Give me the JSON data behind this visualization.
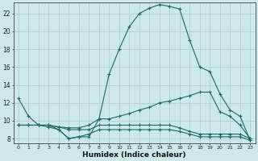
{
  "xlabel": "Humidex (Indice chaleur)",
  "background_color": "#cde8e8",
  "grid_color": "#b0d0d0",
  "line_color": "#1a6b60",
  "xlim": [
    -0.5,
    23.5
  ],
  "ylim": [
    7.5,
    23.2
  ],
  "yticks": [
    8,
    10,
    12,
    14,
    16,
    18,
    20,
    22
  ],
  "xticks": [
    0,
    1,
    2,
    3,
    4,
    5,
    6,
    7,
    8,
    9,
    10,
    11,
    12,
    13,
    14,
    15,
    16,
    17,
    18,
    19,
    20,
    21,
    22,
    23
  ],
  "lines": [
    {
      "x": [
        0,
        1,
        2,
        3,
        4,
        5,
        6,
        7,
        8,
        9,
        10,
        11,
        12,
        13,
        14,
        15,
        16,
        17,
        18,
        19,
        20,
        21,
        22,
        23
      ],
      "y": [
        12.5,
        10.5,
        9.5,
        9.5,
        9.0,
        8.0,
        8.2,
        8.2,
        10.2,
        15.2,
        18.0,
        20.5,
        22.0,
        22.6,
        23.0,
        22.8,
        22.5,
        19.0,
        16.0,
        15.5,
        13.0,
        11.2,
        10.5,
        7.8
      ]
    },
    {
      "x": [
        0,
        1,
        2,
        3,
        4,
        5,
        6,
        7,
        8,
        9,
        10,
        11,
        12,
        13,
        14,
        15,
        16,
        17,
        18,
        19,
        20,
        21,
        22,
        23
      ],
      "y": [
        9.5,
        9.5,
        9.5,
        9.5,
        9.3,
        9.2,
        9.2,
        9.5,
        10.2,
        10.2,
        10.5,
        10.8,
        11.2,
        11.5,
        12.0,
        12.2,
        12.5,
        12.8,
        13.2,
        13.2,
        11.0,
        10.5,
        9.5,
        8.0
      ]
    },
    {
      "x": [
        0,
        1,
        2,
        3,
        4,
        5,
        6,
        7,
        8,
        9,
        10,
        11,
        12,
        13,
        14,
        15,
        16,
        17,
        18,
        19,
        20,
        21,
        22,
        23
      ],
      "y": [
        9.5,
        9.5,
        9.5,
        9.5,
        9.3,
        9.0,
        9.0,
        9.0,
        9.5,
        9.5,
        9.5,
        9.5,
        9.5,
        9.5,
        9.5,
        9.5,
        9.2,
        8.8,
        8.5,
        8.5,
        8.5,
        8.5,
        8.5,
        8.0
      ]
    },
    {
      "x": [
        0,
        1,
        2,
        3,
        4,
        5,
        6,
        7,
        8,
        9,
        10,
        11,
        12,
        13,
        14,
        15,
        16,
        17,
        18,
        19,
        20,
        21,
        22,
        23
      ],
      "y": [
        9.5,
        9.5,
        9.5,
        9.3,
        9.0,
        8.0,
        8.2,
        8.5,
        9.0,
        9.0,
        9.0,
        9.0,
        9.0,
        9.0,
        9.0,
        9.0,
        8.8,
        8.5,
        8.2,
        8.2,
        8.2,
        8.2,
        8.2,
        7.8
      ]
    }
  ]
}
